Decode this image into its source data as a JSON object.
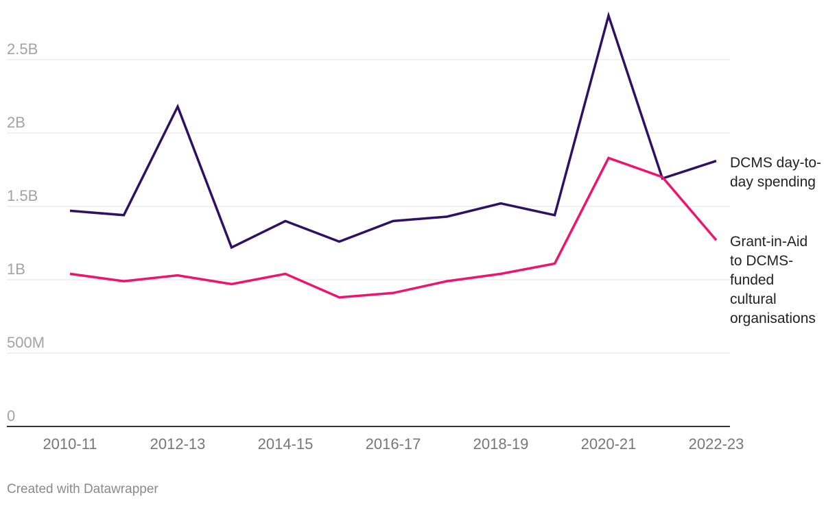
{
  "chart_data": {
    "type": "line",
    "x": [
      "2010-11",
      "2011-12",
      "2012-13",
      "2013-14",
      "2014-15",
      "2015-16",
      "2016-17",
      "2017-18",
      "2018-19",
      "2019-20",
      "2020-21",
      "2021-22",
      "2022-23"
    ],
    "x_tick_labels": [
      "2010-11",
      "2012-13",
      "2014-15",
      "2016-17",
      "2018-19",
      "2020-21",
      "2022-23"
    ],
    "y_ticks": [
      {
        "value": 0,
        "label": "0"
      },
      {
        "value": 500000000,
        "label": "500M"
      },
      {
        "value": 1000000000,
        "label": "1B"
      },
      {
        "value": 1500000000,
        "label": "1.5B"
      },
      {
        "value": 2000000000,
        "label": "2B"
      },
      {
        "value": 2500000000,
        "label": "2.5B"
      }
    ],
    "ylim": [
      0,
      2850000000
    ],
    "grid": true,
    "series": [
      {
        "name": "DCMS day-to-day spending",
        "label_lines": [
          "DCMS day-to-",
          "day spending"
        ],
        "color": "#2e1064",
        "values": [
          1470000000,
          1440000000,
          2180000000,
          1220000000,
          1400000000,
          1260000000,
          1400000000,
          1430000000,
          1520000000,
          1440000000,
          2800000000,
          1690000000,
          1810000000
        ]
      },
      {
        "name": "Grant-in-Aid to DCMS-funded cultural organisations",
        "label_lines": [
          "Grant-in-Aid",
          "to DCMS-",
          "funded",
          "cultural",
          "organisations"
        ],
        "color": "#f0136c",
        "values": [
          1040000000,
          990000000,
          1030000000,
          970000000,
          1040000000,
          880000000,
          910000000,
          990000000,
          1040000000,
          1110000000,
          1830000000,
          1700000000,
          1270000000
        ]
      }
    ]
  },
  "footer": {
    "credit": "Created with Datawrapper"
  }
}
